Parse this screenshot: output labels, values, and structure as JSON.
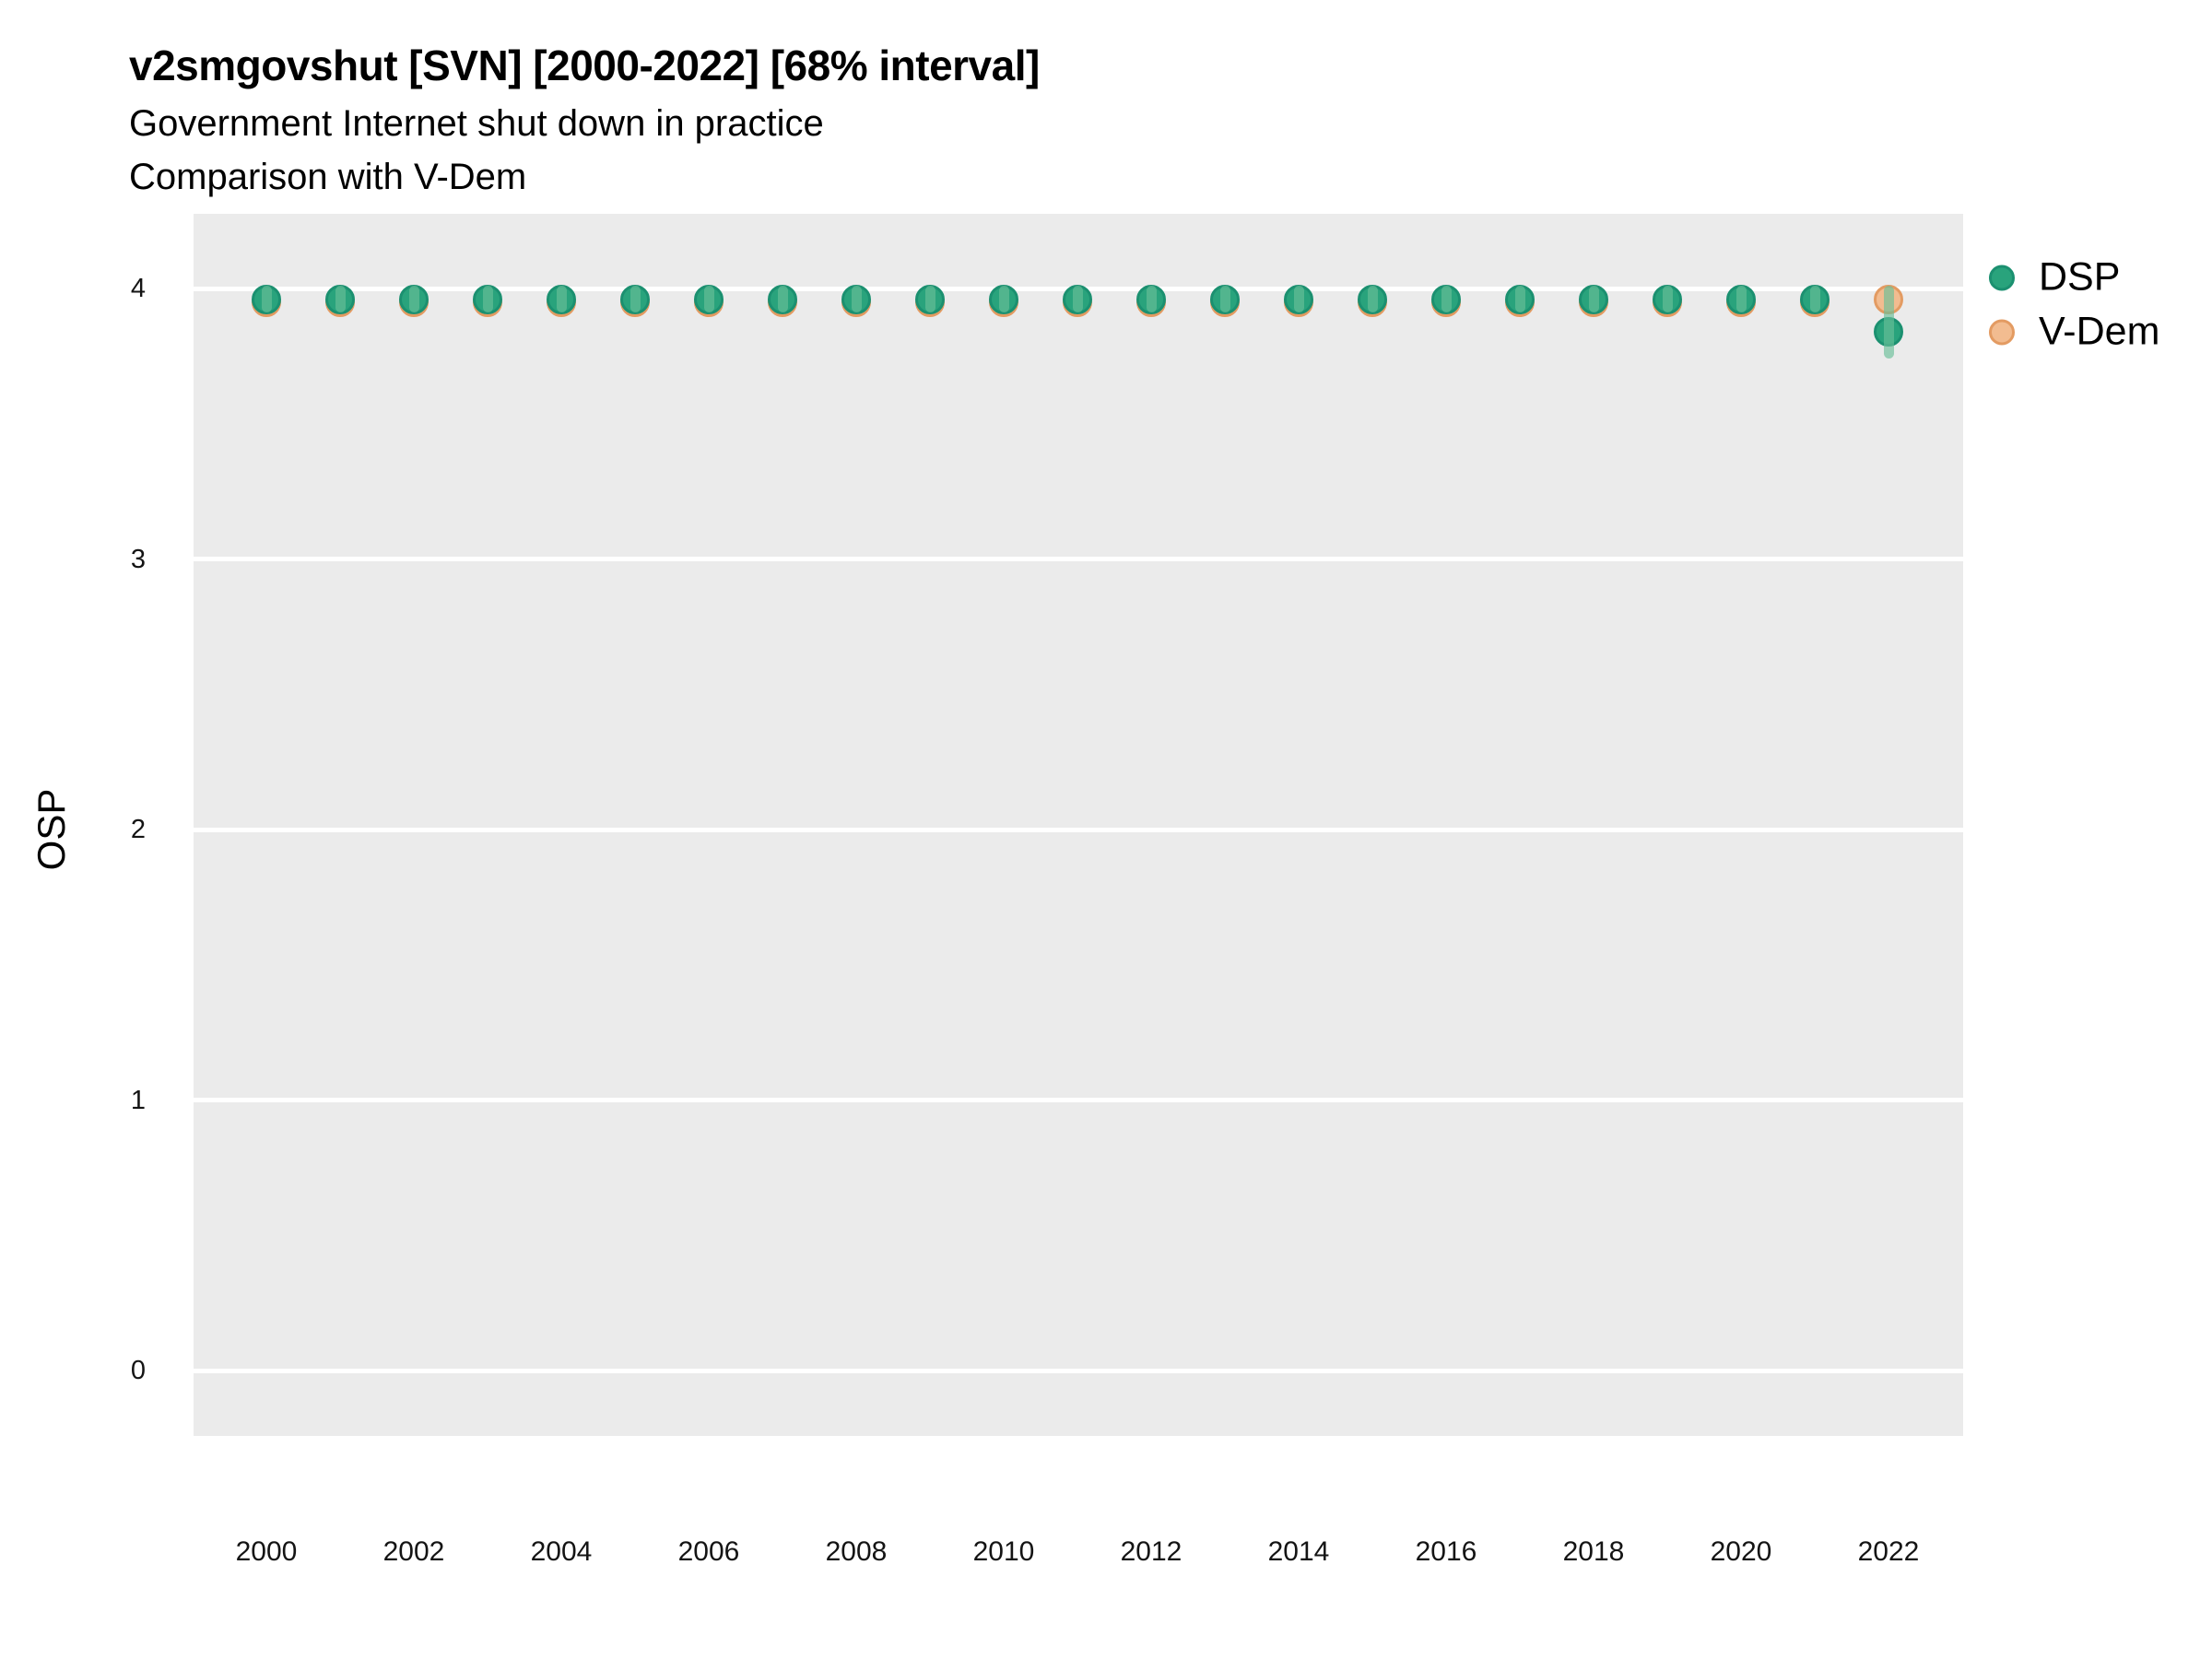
{
  "chart_data": {
    "type": "scatter",
    "title": "v2smgovshut [SVN] [2000-2022] [68% interval]",
    "subtitle": "Government Internet shut down in practice",
    "subtitle2": "Comparison with V-Dem",
    "xlabel": "",
    "ylabel": "OSP",
    "x_ticks": [
      2000,
      2002,
      2004,
      2006,
      2008,
      2010,
      2012,
      2014,
      2016,
      2018,
      2020,
      2022
    ],
    "y_ticks": [
      0,
      1,
      2,
      3,
      4
    ],
    "xlim": [
      1999,
      2023
    ],
    "ylim": [
      -0.26,
      4.27
    ],
    "grid": "major-horizontal-only",
    "legend_position": "right",
    "interval_note": "68% interval",
    "panel_background": "#EBEBEB",
    "gridline_color": "#FFFFFF",
    "legend": {
      "entries": [
        {
          "label": "DSP",
          "fill": "#29A37C",
          "stroke": "#1B9070"
        },
        {
          "label": "V-Dem",
          "fill": "#F2BC90",
          "stroke": "#E39B62"
        }
      ]
    },
    "series": [
      {
        "name": "V-Dem",
        "style": "point",
        "fill": "#F2BC90",
        "stroke": "#E39B62",
        "x": [
          2000,
          2001,
          2002,
          2003,
          2004,
          2005,
          2006,
          2007,
          2008,
          2009,
          2010,
          2011,
          2012,
          2013,
          2014,
          2015,
          2016,
          2017,
          2018,
          2019,
          2020,
          2021,
          2022
        ],
        "y": [
          3.95,
          3.95,
          3.95,
          3.95,
          3.95,
          3.95,
          3.95,
          3.95,
          3.95,
          3.95,
          3.95,
          3.95,
          3.95,
          3.95,
          3.95,
          3.95,
          3.95,
          3.95,
          3.95,
          3.95,
          3.95,
          3.95,
          3.96
        ]
      },
      {
        "name": "DSP",
        "style": "pointrange",
        "fill": "#29A37C",
        "stroke": "#1B9070",
        "interval_color": "rgba(105,190,152,0.65)",
        "x": [
          2000,
          2001,
          2002,
          2003,
          2004,
          2005,
          2006,
          2007,
          2008,
          2009,
          2010,
          2011,
          2012,
          2013,
          2014,
          2015,
          2016,
          2017,
          2018,
          2019,
          2020,
          2021,
          2022
        ],
        "y": [
          3.96,
          3.96,
          3.96,
          3.96,
          3.96,
          3.96,
          3.96,
          3.96,
          3.96,
          3.96,
          3.96,
          3.96,
          3.96,
          3.96,
          3.96,
          3.96,
          3.96,
          3.96,
          3.96,
          3.96,
          3.96,
          3.96,
          3.84
        ],
        "lo": [
          3.91,
          3.91,
          3.91,
          3.91,
          3.91,
          3.91,
          3.91,
          3.91,
          3.91,
          3.91,
          3.91,
          3.91,
          3.91,
          3.91,
          3.91,
          3.91,
          3.91,
          3.91,
          3.91,
          3.91,
          3.91,
          3.91,
          3.74
        ],
        "hi": [
          4.01,
          4.01,
          4.01,
          4.01,
          4.01,
          4.01,
          4.01,
          4.01,
          4.01,
          4.01,
          4.01,
          4.01,
          4.01,
          4.01,
          4.01,
          4.01,
          4.01,
          4.01,
          4.01,
          4.01,
          4.01,
          4.01,
          4.01
        ]
      }
    ]
  }
}
